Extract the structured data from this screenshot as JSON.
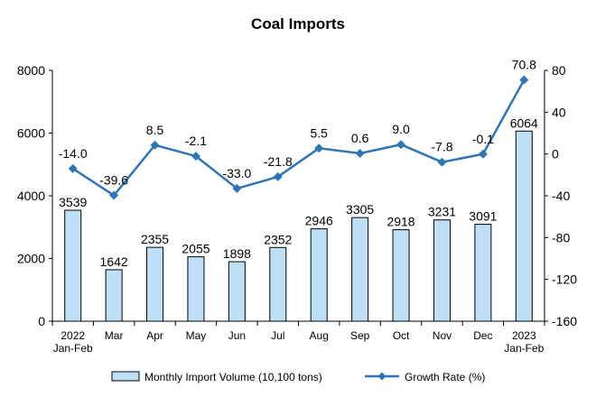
{
  "chart_data": {
    "type": "bar+line",
    "title": "Coal Imports",
    "categories": [
      [
        "2022",
        "Jan-Feb"
      ],
      [
        "Mar"
      ],
      [
        "Apr"
      ],
      [
        "May"
      ],
      [
        "Jun"
      ],
      [
        "Jul"
      ],
      [
        "Aug"
      ],
      [
        "Sep"
      ],
      [
        "Oct"
      ],
      [
        "Nov"
      ],
      [
        "Dec"
      ],
      [
        "2023",
        "Jan-Feb"
      ]
    ],
    "bar_series": {
      "name": "Monthly Import Volume (10,100 tons)",
      "values": [
        3539,
        1642,
        2355,
        2055,
        1898,
        2352,
        2946,
        3305,
        2918,
        3231,
        3091,
        6064
      ],
      "color": "#bde0f7",
      "edge_color": "#000000"
    },
    "line_series": {
      "name": "Growth Rate (%)",
      "values": [
        "-14.0",
        "-39.6",
        "8.5",
        "-2.1",
        "-33.0",
        "-21.8",
        "5.5",
        "0.6",
        "9.0",
        "-7.8",
        "-0.1",
        "70.8"
      ],
      "color": "#2e75b6"
    },
    "y_left": {
      "min": 0,
      "max": 8000,
      "ticks": [
        "0",
        "2000",
        "4000",
        "6000",
        "8000"
      ]
    },
    "y_right": {
      "min": -160,
      "max": 80,
      "ticks": [
        "-160",
        "-120",
        "-80",
        "-40",
        "0",
        "40",
        "80"
      ]
    },
    "grid": false,
    "legend_position": "bottom"
  }
}
